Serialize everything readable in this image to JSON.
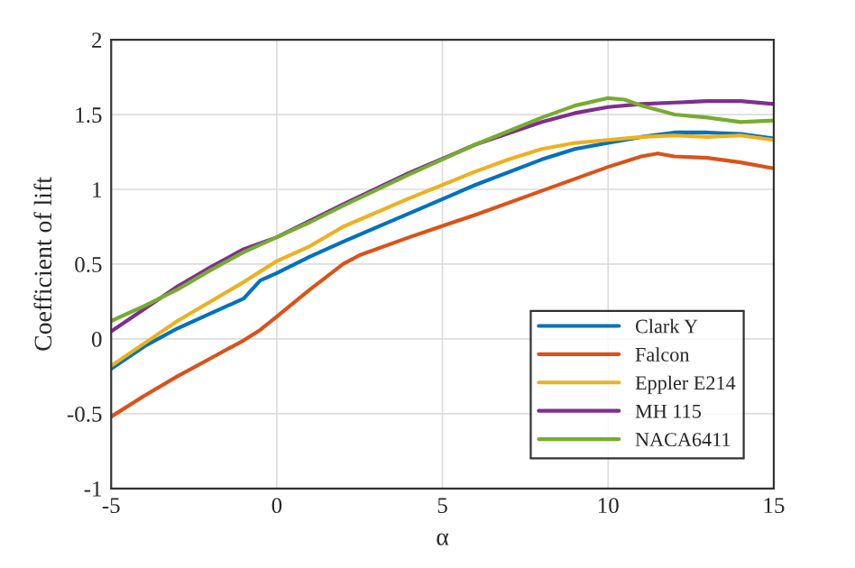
{
  "chart_data": {
    "type": "line",
    "xlabel": "α",
    "ylabel": "Coefficient of lift",
    "xlim": [
      -5,
      15
    ],
    "xticks": [
      -5,
      0,
      5,
      10,
      15
    ],
    "ylim": [
      -1,
      2
    ],
    "yticks": [
      -1,
      -0.5,
      0,
      0.5,
      1,
      1.5,
      2
    ],
    "grid": true,
    "legend": "bottom right",
    "marker": "none",
    "line_style": "solid",
    "series": [
      {
        "name": "Clark Y",
        "color": "#0072bd",
        "x": [
          -5,
          -4,
          -3,
          -2,
          -1,
          -0.5,
          0,
          1,
          2,
          4,
          6,
          8,
          9,
          10,
          11,
          12,
          13,
          14,
          15
        ],
        "values": [
          -0.2,
          -0.05,
          0.07,
          0.17,
          0.27,
          0.39,
          0.44,
          0.55,
          0.65,
          0.84,
          1.03,
          1.2,
          1.27,
          1.31,
          1.35,
          1.38,
          1.38,
          1.37,
          1.34
        ]
      },
      {
        "name": "Falcon",
        "color": "#d95319",
        "x": [
          -5,
          -4,
          -3,
          -2,
          -1,
          -0.5,
          0,
          1,
          2,
          2.5,
          4,
          6,
          8,
          10,
          11,
          11.5,
          12,
          13,
          14,
          15
        ],
        "values": [
          -0.52,
          -0.38,
          -0.25,
          -0.13,
          -0.01,
          0.06,
          0.15,
          0.33,
          0.5,
          0.56,
          0.68,
          0.83,
          0.99,
          1.15,
          1.22,
          1.24,
          1.22,
          1.21,
          1.18,
          1.14
        ]
      },
      {
        "name": "Eppler E214",
        "color": "#edb120",
        "x": [
          -5,
          -4,
          -3,
          -2,
          -1,
          0,
          1,
          2,
          4,
          6,
          7,
          8,
          9,
          10,
          11,
          12,
          13,
          14,
          15
        ],
        "values": [
          -0.18,
          -0.03,
          0.12,
          0.25,
          0.38,
          0.52,
          0.62,
          0.75,
          0.94,
          1.12,
          1.2,
          1.27,
          1.31,
          1.33,
          1.35,
          1.36,
          1.35,
          1.36,
          1.33
        ]
      },
      {
        "name": "MH 115",
        "color": "#7e2f8e",
        "x": [
          -5,
          -4,
          -3,
          -2,
          -1,
          0,
          1,
          2,
          4,
          6,
          8,
          9,
          10,
          11,
          12,
          13,
          14,
          15
        ],
        "values": [
          0.05,
          0.2,
          0.35,
          0.48,
          0.6,
          0.68,
          0.79,
          0.9,
          1.11,
          1.3,
          1.45,
          1.51,
          1.55,
          1.57,
          1.58,
          1.59,
          1.59,
          1.57
        ]
      },
      {
        "name": "NACA6411",
        "color": "#77ac30",
        "x": [
          -5,
          -4,
          -3,
          -2,
          -1,
          0,
          1,
          2,
          4,
          6,
          8,
          9,
          10,
          10.5,
          11,
          12,
          13,
          14,
          15
        ],
        "values": [
          0.12,
          0.22,
          0.33,
          0.46,
          0.58,
          0.68,
          0.78,
          0.89,
          1.1,
          1.3,
          1.48,
          1.56,
          1.61,
          1.6,
          1.56,
          1.5,
          1.48,
          1.45,
          1.46
        ]
      }
    ]
  }
}
